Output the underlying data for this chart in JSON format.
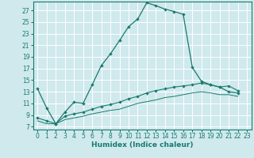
{
  "xlabel": "Humidex (Indice chaleur)",
  "background_color": "#cfe9ed",
  "grid_color": "#ffffff",
  "line_color": "#1a7a6e",
  "xlim": [
    -0.5,
    23.5
  ],
  "ylim": [
    6.5,
    28.5
  ],
  "yticks": [
    7,
    9,
    11,
    13,
    15,
    17,
    19,
    21,
    23,
    25,
    27
  ],
  "xticks": [
    0,
    1,
    2,
    3,
    4,
    5,
    6,
    7,
    8,
    9,
    10,
    11,
    12,
    13,
    14,
    15,
    16,
    17,
    18,
    19,
    20,
    21,
    22,
    23
  ],
  "curve_main_x": [
    0,
    1,
    2,
    3,
    4,
    5,
    6,
    7,
    8,
    9,
    10,
    11,
    12,
    13,
    14,
    15,
    16,
    17,
    18,
    19,
    20,
    21,
    22
  ],
  "curve_main_y": [
    13.5,
    10.2,
    7.5,
    9.5,
    11.2,
    11.0,
    14.2,
    17.5,
    19.5,
    21.8,
    24.2,
    25.5,
    28.3,
    27.8,
    27.2,
    26.8,
    26.3,
    17.2,
    14.8,
    14.2,
    13.8,
    13.0,
    12.8
  ],
  "curve_mid_x": [
    0,
    1,
    2,
    3,
    4,
    5,
    6,
    7,
    8,
    9,
    10,
    11,
    12,
    13,
    14,
    15,
    16,
    17,
    18,
    19,
    20,
    21,
    22
  ],
  "curve_mid_y": [
    8.5,
    8.0,
    7.5,
    8.8,
    9.2,
    9.5,
    10.0,
    10.5,
    10.8,
    11.2,
    11.8,
    12.2,
    12.8,
    13.2,
    13.5,
    13.8,
    14.0,
    14.2,
    14.5,
    14.2,
    13.8,
    14.0,
    13.2
  ],
  "curve_low_x": [
    0,
    1,
    2,
    3,
    4,
    5,
    6,
    7,
    8,
    9,
    10,
    11,
    12,
    13,
    14,
    15,
    16,
    17,
    18,
    19,
    20,
    21,
    22
  ],
  "curve_low_y": [
    8.0,
    7.5,
    7.5,
    8.2,
    8.5,
    8.8,
    9.2,
    9.5,
    9.8,
    10.0,
    10.5,
    11.0,
    11.3,
    11.6,
    12.0,
    12.2,
    12.5,
    12.8,
    13.0,
    12.8,
    12.5,
    12.5,
    12.2
  ]
}
